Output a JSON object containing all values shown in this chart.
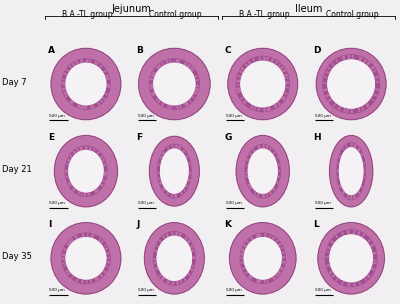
{
  "figure_bg": "#f0f0f0",
  "title_jejunum": "Jejunum",
  "title_ileum": "Ileum",
  "col_labels": [
    "B.A.-TL group",
    "Control group",
    "B.A.-TL group",
    "Control group"
  ],
  "row_labels": [
    "Day 7",
    "Day 21",
    "Day 35"
  ],
  "panel_letters": [
    [
      "A",
      "B",
      "C",
      "D"
    ],
    [
      "E",
      "F",
      "G",
      "H"
    ],
    [
      "I",
      "J",
      "K",
      "L"
    ]
  ],
  "n_rows": 3,
  "n_cols": 4,
  "panel_bg": "#f0eeee",
  "wall_color": "#c070a8",
  "wall_dark": "#9040808",
  "villus_color": "#c878b0",
  "lumen_color": "#f8f5f8",
  "bg_color": "#f0eeee",
  "shapes": {
    "A": [
      0.5,
      0.5,
      0.42,
      0.44,
      0.13,
      0.13,
      32,
      0.3,
      0.55
    ],
    "B": [
      0.5,
      0.5,
      0.43,
      0.44,
      0.13,
      0.13,
      34,
      0.28,
      0.6
    ],
    "C": [
      0.5,
      0.5,
      0.42,
      0.44,
      0.1,
      0.1,
      36,
      0.2,
      0.65
    ],
    "D": [
      0.5,
      0.5,
      0.42,
      0.44,
      0.08,
      0.08,
      30,
      0.15,
      0.4
    ],
    "E": [
      0.5,
      0.5,
      0.38,
      0.44,
      0.13,
      0.13,
      28,
      0.3,
      0.55
    ],
    "F": [
      0.5,
      0.5,
      0.3,
      0.43,
      0.1,
      0.1,
      22,
      0.25,
      0.55
    ],
    "G": [
      0.5,
      0.5,
      0.32,
      0.44,
      0.11,
      0.11,
      24,
      0.28,
      0.55
    ],
    "H": [
      0.5,
      0.5,
      0.26,
      0.44,
      0.09,
      0.09,
      20,
      0.25,
      0.5
    ],
    "I": [
      0.5,
      0.5,
      0.42,
      0.44,
      0.13,
      0.13,
      32,
      0.28,
      0.55
    ],
    "J": [
      0.5,
      0.5,
      0.36,
      0.44,
      0.11,
      0.11,
      26,
      0.25,
      0.55
    ],
    "K": [
      0.5,
      0.5,
      0.4,
      0.44,
      0.13,
      0.13,
      30,
      0.28,
      0.55
    ],
    "L": [
      0.5,
      0.5,
      0.4,
      0.44,
      0.09,
      0.09,
      26,
      0.2,
      0.45
    ]
  }
}
